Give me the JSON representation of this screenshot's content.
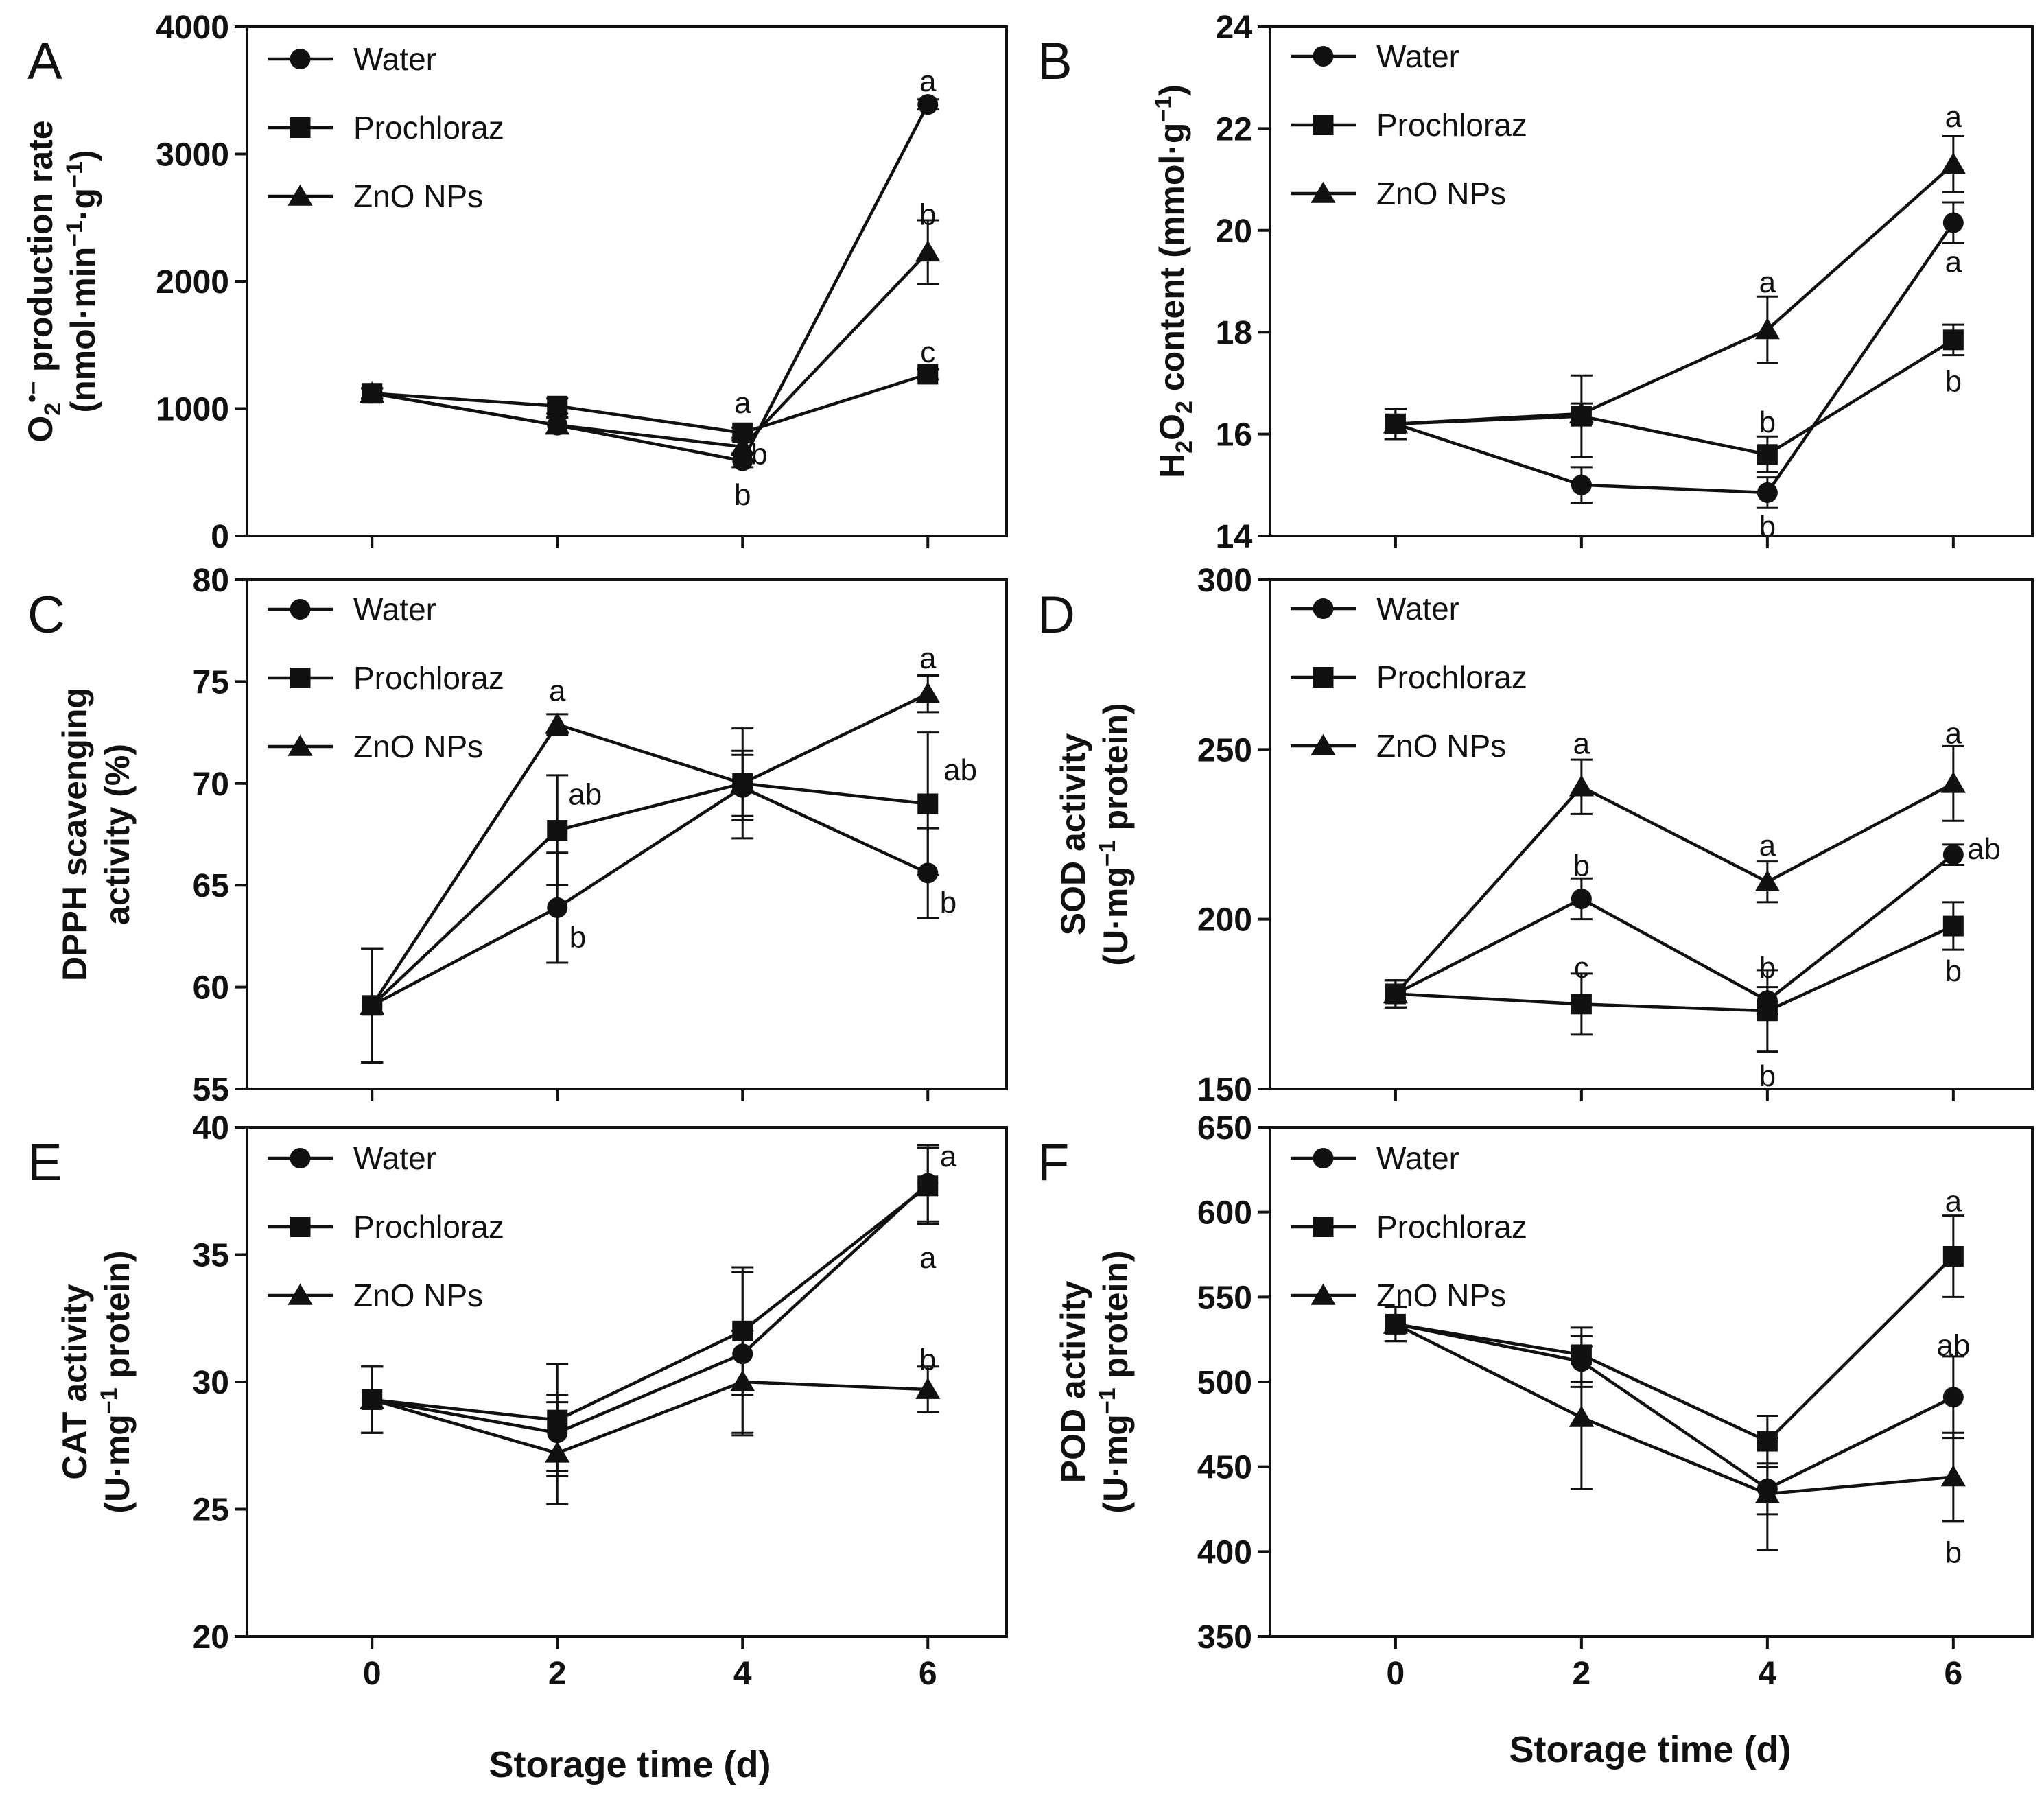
{
  "figure": {
    "xlabel": "Storage time (d)",
    "legend": [
      "Water",
      "Prochloraz",
      "ZnO NPs"
    ],
    "x_ticks": [
      "0",
      "2",
      "4",
      "6"
    ]
  },
  "chart_data": [
    {
      "panel": "A",
      "type": "line",
      "ylabel_lines": [
        [
          {
            "t": "O"
          },
          {
            "t": "2",
            "sub": true
          },
          {
            "t": "•–",
            "sup": true
          },
          {
            "t": " production rate"
          }
        ],
        [
          {
            "t": "(nmol·min"
          },
          {
            "t": "−1",
            "sup": true
          },
          {
            "t": "·g"
          },
          {
            "t": "−1",
            "sup": true
          },
          {
            "t": ")"
          }
        ]
      ],
      "x": [
        0,
        2,
        4,
        6
      ],
      "ylim": [
        0,
        4000
      ],
      "yticks": [
        0,
        1000,
        2000,
        3000,
        4000
      ],
      "ytick_labels": [
        "0",
        "1000",
        "2000",
        "3000",
        "4000"
      ],
      "series": [
        {
          "name": "Water",
          "marker": "circle",
          "values": [
            1120,
            870,
            590,
            3390
          ],
          "errors": [
            40,
            60,
            50,
            40
          ]
        },
        {
          "name": "Prochloraz",
          "marker": "square",
          "values": [
            1120,
            1020,
            810,
            1270
          ],
          "errors": [
            40,
            60,
            40,
            40
          ]
        },
        {
          "name": "ZnO NPs",
          "marker": "triangle",
          "values": [
            1120,
            870,
            700,
            2230
          ],
          "errors": [
            40,
            60,
            50,
            250
          ]
        }
      ],
      "letters": [
        {
          "text": "a",
          "x": 4,
          "y": 1050
        },
        {
          "text": "b",
          "x": 4.18,
          "y": 650
        },
        {
          "text": "b",
          "x": 4,
          "y": 330
        },
        {
          "text": "a",
          "x": 6,
          "y": 3580
        },
        {
          "text": "b",
          "x": 6,
          "y": 2530
        },
        {
          "text": "c",
          "x": 6,
          "y": 1450
        }
      ]
    },
    {
      "panel": "B",
      "type": "line",
      "ylabel_lines": [
        [
          {
            "t": "H"
          },
          {
            "t": "2",
            "sub": true
          },
          {
            "t": "O"
          },
          {
            "t": "2",
            "sub": true
          },
          {
            "t": " content (mmol·g"
          },
          {
            "t": "−1",
            "sup": true
          },
          {
            "t": ")"
          }
        ]
      ],
      "x": [
        0,
        2,
        4,
        6
      ],
      "ylim": [
        14,
        24
      ],
      "yticks": [
        14,
        16,
        18,
        20,
        22,
        24
      ],
      "ytick_labels": [
        "14",
        "16",
        "18",
        "20",
        "22",
        "24"
      ],
      "series": [
        {
          "name": "Water",
          "marker": "circle",
          "values": [
            16.2,
            15.0,
            14.85,
            20.15
          ],
          "errors": [
            0.3,
            0.35,
            0.3,
            0.4
          ]
        },
        {
          "name": "Prochloraz",
          "marker": "square",
          "values": [
            16.2,
            16.35,
            15.6,
            17.85
          ],
          "errors": [
            0.3,
            0.8,
            0.35,
            0.3
          ]
        },
        {
          "name": "ZnO NPs",
          "marker": "triangle",
          "values": [
            16.2,
            16.4,
            18.05,
            21.3
          ],
          "errors": [
            0.3,
            0.2,
            0.65,
            0.55
          ]
        }
      ],
      "letters": [
        {
          "text": "a",
          "x": 4,
          "y": 19.0
        },
        {
          "text": "b",
          "x": 4,
          "y": 16.25
        },
        {
          "text": "b",
          "x": 4,
          "y": 14.2
        },
        {
          "text": "a",
          "x": 6,
          "y": 22.25
        },
        {
          "text": "a",
          "x": 6,
          "y": 19.4
        },
        {
          "text": "b",
          "x": 6,
          "y": 17.05
        }
      ]
    },
    {
      "panel": "C",
      "type": "line",
      "ylabel_lines": [
        [
          {
            "t": "DPPH scavenging"
          }
        ],
        [
          {
            "t": "activity (%)"
          }
        ]
      ],
      "x": [
        0,
        2,
        4,
        6
      ],
      "ylim": [
        55,
        80
      ],
      "yticks": [
        55,
        60,
        65,
        70,
        75,
        80
      ],
      "ytick_labels": [
        "55",
        "60",
        "65",
        "70",
        "75",
        "80"
      ],
      "series": [
        {
          "name": "Water",
          "marker": "circle",
          "values": [
            59.1,
            63.9,
            69.8,
            65.6
          ],
          "errors": [
            2.8,
            2.7,
            1.6,
            2.2
          ]
        },
        {
          "name": "Prochloraz",
          "marker": "square",
          "values": [
            59.1,
            67.7,
            70.0,
            69.0
          ],
          "errors": [
            2.8,
            2.7,
            1.6,
            3.5
          ]
        },
        {
          "name": "ZnO NPs",
          "marker": "triangle",
          "values": [
            59.1,
            72.9,
            70.0,
            74.4
          ],
          "errors": [
            2.8,
            0.5,
            2.7,
            0.9
          ]
        }
      ],
      "letters": [
        {
          "text": "a",
          "x": 2,
          "y": 74.6
        },
        {
          "text": "ab",
          "x": 2.3,
          "y": 69.5
        },
        {
          "text": "b",
          "x": 2.22,
          "y": 62.5
        },
        {
          "text": "a",
          "x": 6,
          "y": 76.2
        },
        {
          "text": "ab",
          "x": 6.35,
          "y": 70.7
        },
        {
          "text": "b",
          "x": 6.22,
          "y": 64.2
        }
      ]
    },
    {
      "panel": "D",
      "type": "line",
      "ylabel_lines": [
        [
          {
            "t": "SOD activity"
          }
        ],
        [
          {
            "t": "(U·mg"
          },
          {
            "t": "−1",
            "sup": true
          },
          {
            "t": " protein)"
          }
        ]
      ],
      "x": [
        0,
        2,
        4,
        6
      ],
      "ylim": [
        150,
        300
      ],
      "yticks": [
        150,
        200,
        250,
        300
      ],
      "ytick_labels": [
        "150",
        "200",
        "250",
        "300"
      ],
      "series": [
        {
          "name": "Water",
          "marker": "circle",
          "values": [
            178,
            206,
            176,
            219
          ],
          "errors": [
            4,
            6,
            4,
            3
          ]
        },
        {
          "name": "Prochloraz",
          "marker": "square",
          "values": [
            178,
            175,
            173,
            198
          ],
          "errors": [
            4,
            9,
            12,
            7
          ]
        },
        {
          "name": "ZnO NPs",
          "marker": "triangle",
          "values": [
            178,
            239,
            211,
            240
          ],
          "errors": [
            4,
            8,
            6,
            11
          ]
        }
      ],
      "letters": [
        {
          "text": "a",
          "x": 2,
          "y": 252
        },
        {
          "text": "b",
          "x": 2,
          "y": 216
        },
        {
          "text": "c",
          "x": 2,
          "y": 186
        },
        {
          "text": "a",
          "x": 4,
          "y": 222
        },
        {
          "text": "b",
          "x": 4,
          "y": 186
        },
        {
          "text": "b",
          "x": 4,
          "y": 154
        },
        {
          "text": "a",
          "x": 6,
          "y": 255
        },
        {
          "text": "ab",
          "x": 6.33,
          "y": 221
        },
        {
          "text": "b",
          "x": 6,
          "y": 185
        }
      ]
    },
    {
      "panel": "E",
      "type": "line",
      "ylabel_lines": [
        [
          {
            "t": "CAT activity"
          }
        ],
        [
          {
            "t": "(U·mg"
          },
          {
            "t": "−1",
            "sup": true
          },
          {
            "t": " protein)"
          }
        ]
      ],
      "x": [
        0,
        2,
        4,
        6
      ],
      "ylim": [
        20,
        40
      ],
      "yticks": [
        20,
        25,
        30,
        35,
        40
      ],
      "ytick_labels": [
        "20",
        "25",
        "30",
        "35",
        "40"
      ],
      "series": [
        {
          "name": "Water",
          "marker": "circle",
          "values": [
            29.3,
            28.0,
            31.1,
            37.8
          ],
          "errors": [
            1.3,
            1.5,
            3.2,
            1.5
          ]
        },
        {
          "name": "Prochloraz",
          "marker": "square",
          "values": [
            29.3,
            28.5,
            32.0,
            37.7
          ],
          "errors": [
            1.3,
            2.2,
            2.5,
            1.5
          ]
        },
        {
          "name": "ZnO NPs",
          "marker": "triangle",
          "values": [
            29.3,
            27.2,
            30.0,
            29.7
          ],
          "errors": [
            1.3,
            2.0,
            2.0,
            0.9
          ]
        }
      ],
      "letters": [
        {
          "text": "a",
          "x": 6.22,
          "y": 38.9
        },
        {
          "text": "a",
          "x": 6,
          "y": 34.9
        },
        {
          "text": "b",
          "x": 6,
          "y": 30.9
        }
      ]
    },
    {
      "panel": "F",
      "type": "line",
      "ylabel_lines": [
        [
          {
            "t": "POD activity"
          }
        ],
        [
          {
            "t": "(U·mg"
          },
          {
            "t": "−1",
            "sup": true
          },
          {
            "t": " protein)"
          }
        ]
      ],
      "x": [
        0,
        2,
        4,
        6
      ],
      "ylim": [
        350,
        650
      ],
      "yticks": [
        350,
        400,
        450,
        500,
        550,
        600,
        650
      ],
      "ytick_labels": [
        "350",
        "400",
        "450",
        "500",
        "550",
        "600",
        "650"
      ],
      "series": [
        {
          "name": "Water",
          "marker": "circle",
          "values": [
            534,
            512,
            437,
            491
          ],
          "errors": [
            10,
            15,
            15,
            24
          ]
        },
        {
          "name": "Prochloraz",
          "marker": "square",
          "values": [
            534,
            516,
            465,
            574
          ],
          "errors": [
            10,
            16,
            15,
            24
          ]
        },
        {
          "name": "ZnO NPs",
          "marker": "triangle",
          "values": [
            534,
            479,
            434,
            444
          ],
          "errors": [
            10,
            42,
            33,
            26
          ]
        }
      ],
      "letters": [
        {
          "text": "a",
          "x": 6,
          "y": 607
        },
        {
          "text": "ab",
          "x": 6,
          "y": 522
        },
        {
          "text": "b",
          "x": 6,
          "y": 400
        }
      ]
    }
  ]
}
